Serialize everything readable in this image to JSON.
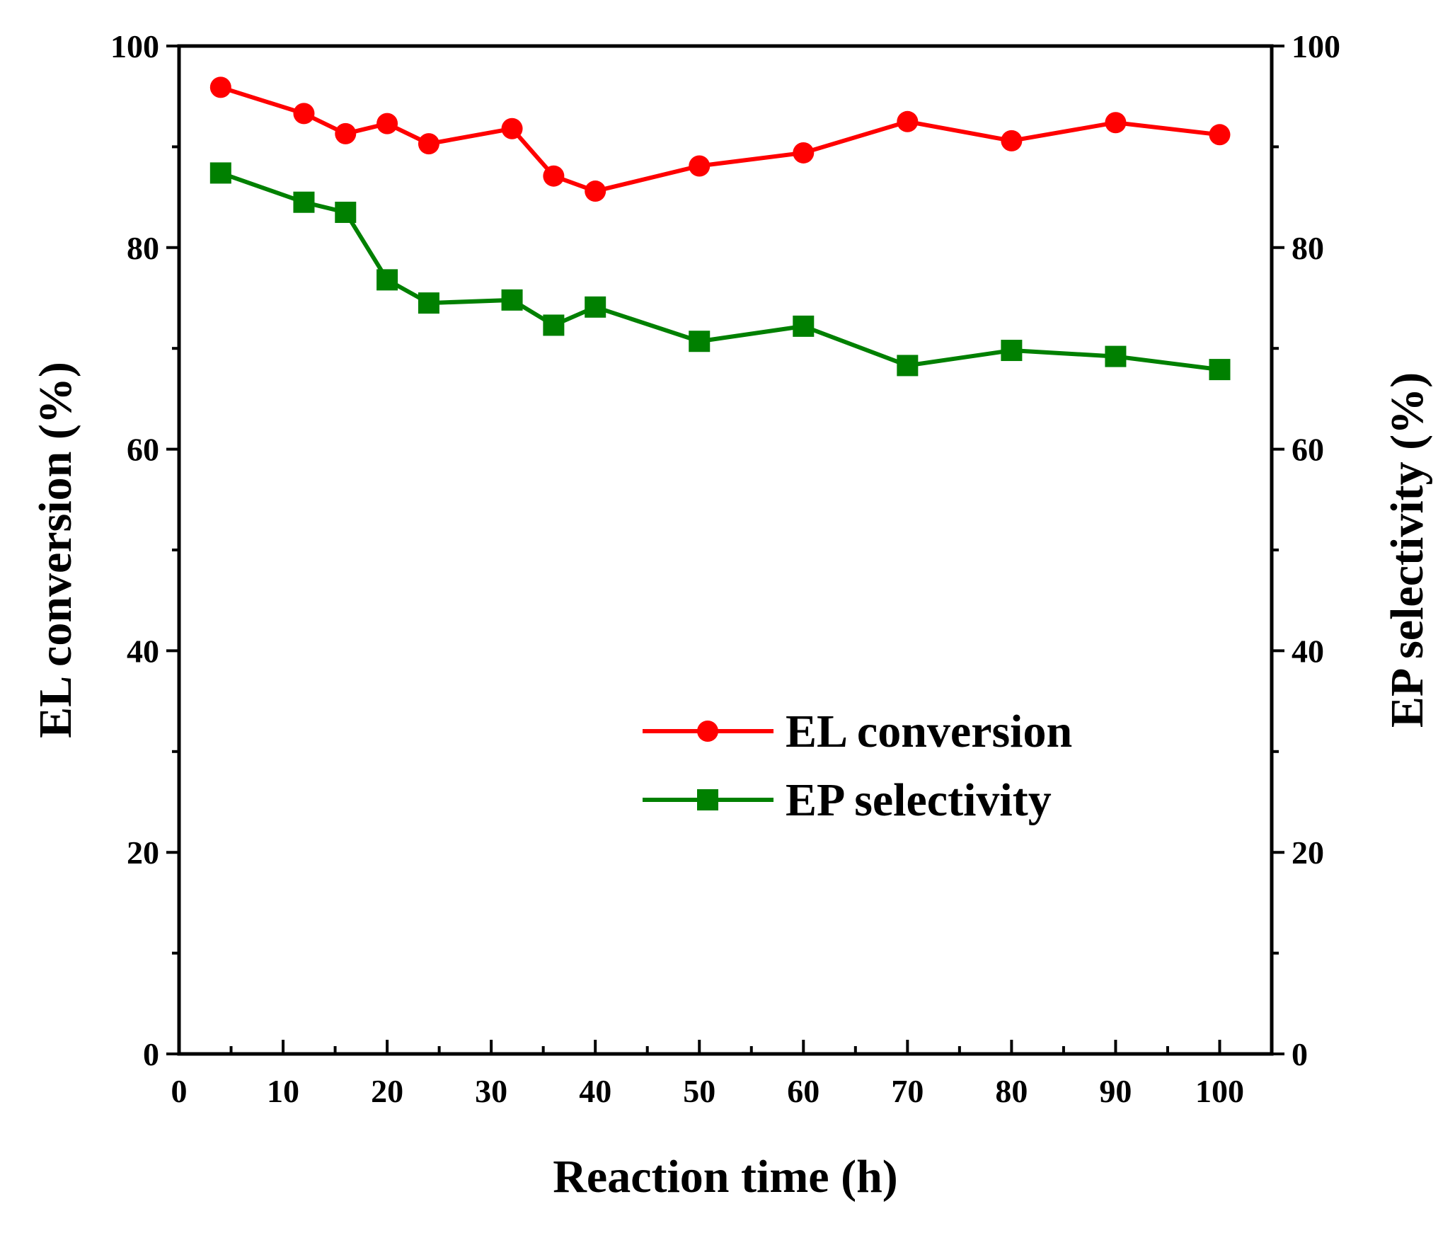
{
  "chart_data": {
    "type": "line",
    "xlabel": "Reaction time (h)",
    "ylabel_left": "EL conversion (%)",
    "ylabel_right": "EP selectivity (%)",
    "xlim": [
      0,
      105
    ],
    "ylim": [
      0,
      100
    ],
    "x_ticks": [
      "0",
      "10",
      "20",
      "30",
      "40",
      "50",
      "60",
      "70",
      "80",
      "90",
      "100"
    ],
    "y_ticks_left": [
      "0",
      "20",
      "40",
      "60",
      "80",
      "100"
    ],
    "y_ticks_right": [
      "0",
      "20",
      "40",
      "60",
      "80",
      "100"
    ],
    "grid": false,
    "legend_position": "center-right",
    "series": [
      {
        "name": "EL conversion",
        "color": "#ff0000",
        "marker": "circle",
        "axis": "left",
        "x": [
          4,
          12,
          16,
          20,
          24,
          32,
          36,
          40,
          50,
          60,
          70,
          80,
          90,
          100
        ],
        "y": [
          95.9,
          93.3,
          91.3,
          92.3,
          90.3,
          91.8,
          87.1,
          85.6,
          88.1,
          89.4,
          92.5,
          90.6,
          92.4,
          91.2
        ]
      },
      {
        "name": "EP selectivity",
        "color": "#008000",
        "marker": "square",
        "axis": "right",
        "x": [
          4,
          12,
          16,
          20,
          24,
          32,
          36,
          40,
          50,
          60,
          70,
          80,
          90,
          100
        ],
        "y": [
          87.4,
          84.5,
          83.5,
          76.8,
          74.5,
          74.8,
          72.3,
          74.1,
          70.7,
          72.2,
          68.3,
          69.8,
          69.2,
          67.9
        ]
      }
    ]
  }
}
